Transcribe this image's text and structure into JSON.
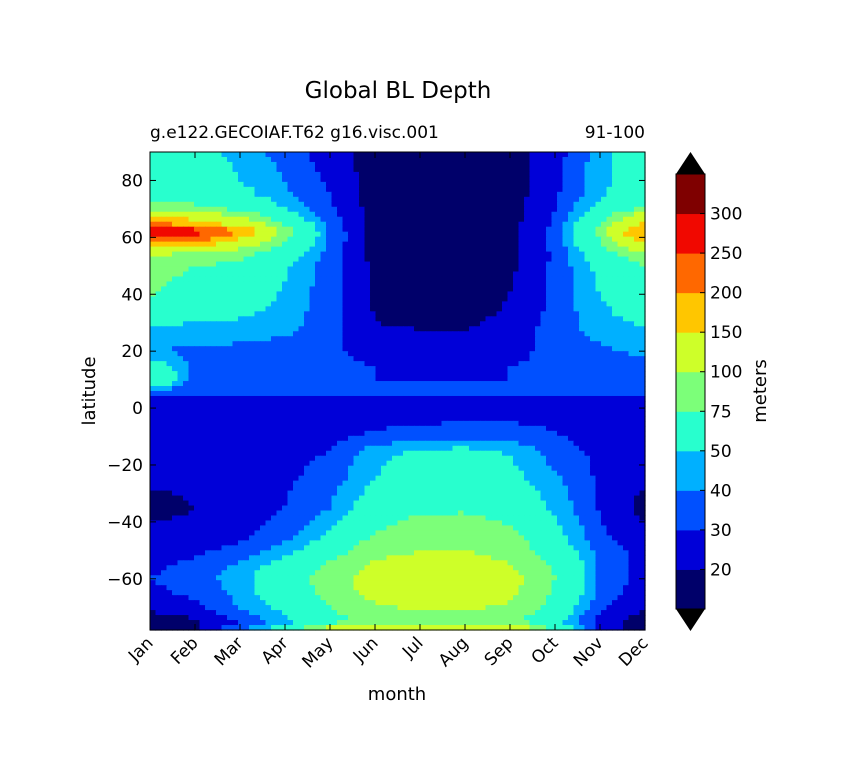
{
  "chart_data": {
    "type": "contourf",
    "title": "Global BL Depth",
    "subtitle_left": "g.e122.GECOIAF.T62 g16.visc.001",
    "subtitle_right": "91-100",
    "xlabel": "month",
    "ylabel": "latitude",
    "colorbar_label": "meters",
    "x_categories": [
      "Jan",
      "Feb",
      "Mar",
      "Apr",
      "May",
      "Jun",
      "Jul",
      "Aug",
      "Sep",
      "Oct",
      "Nov",
      "Dec"
    ],
    "ylim": [
      -78,
      90
    ],
    "yticks": [
      -60,
      -40,
      -20,
      0,
      20,
      40,
      60,
      80
    ],
    "levels": [
      20,
      30,
      40,
      50,
      75,
      100,
      150,
      200,
      250,
      300
    ],
    "level_labels": [
      "20",
      "30",
      "40",
      "50",
      "75",
      "100",
      "150",
      "200",
      "250",
      "300"
    ],
    "level_colors": [
      "#00006a",
      "#0000d8",
      "#0050ff",
      "#00b0ff",
      "#28ffce",
      "#7cff79",
      "#ceff29",
      "#ffc600",
      "#ff6800",
      "#f10800",
      "#7f0000"
    ],
    "extend_colors": {
      "low": "#000000",
      "high": "#000000"
    },
    "latitudes": [
      90,
      85,
      80,
      75,
      70,
      65,
      62,
      60,
      55,
      50,
      45,
      40,
      35,
      30,
      25,
      20,
      15,
      10,
      5,
      0,
      -5,
      -10,
      -15,
      -20,
      -25,
      -30,
      -35,
      -40,
      -45,
      -50,
      -55,
      -60,
      -65,
      -70,
      -75,
      -78
    ],
    "values": [
      [
        60,
        55,
        45,
        35,
        25,
        15,
        12,
        12,
        15,
        25,
        45,
        60
      ],
      [
        65,
        60,
        48,
        38,
        26,
        15,
        12,
        12,
        15,
        26,
        46,
        62
      ],
      [
        65,
        60,
        50,
        40,
        28,
        15,
        12,
        12,
        15,
        27,
        46,
        62
      ],
      [
        70,
        65,
        55,
        42,
        30,
        15,
        12,
        12,
        15,
        28,
        48,
        65
      ],
      [
        85,
        80,
        70,
        50,
        32,
        15,
        12,
        12,
        15,
        30,
        55,
        80
      ],
      [
        200,
        170,
        120,
        70,
        35,
        15,
        12,
        12,
        16,
        32,
        70,
        160
      ],
      [
        310,
        280,
        200,
        90,
        38,
        15,
        12,
        12,
        16,
        33,
        80,
        220
      ],
      [
        270,
        240,
        160,
        80,
        38,
        15,
        12,
        12,
        16,
        33,
        78,
        190
      ],
      [
        110,
        100,
        85,
        60,
        36,
        16,
        12,
        12,
        17,
        32,
        62,
        100
      ],
      [
        80,
        75,
        70,
        52,
        35,
        17,
        13,
        13,
        18,
        32,
        55,
        75
      ],
      [
        78,
        72,
        65,
        50,
        34,
        18,
        14,
        14,
        19,
        32,
        52,
        70
      ],
      [
        76,
        70,
        62,
        48,
        34,
        19,
        15,
        15,
        20,
        32,
        50,
        65
      ],
      [
        60,
        58,
        55,
        46,
        34,
        19,
        16,
        16,
        21,
        33,
        48,
        58
      ],
      [
        52,
        50,
        48,
        44,
        34,
        20,
        18,
        18,
        23,
        34,
        46,
        52
      ],
      [
        45,
        44,
        43,
        40,
        33,
        24,
        22,
        22,
        26,
        34,
        42,
        46
      ],
      [
        40,
        38,
        36,
        34,
        31,
        28,
        26,
        26,
        28,
        32,
        38,
        42
      ],
      [
        60,
        36,
        34,
        33,
        31,
        30,
        29,
        29,
        30,
        31,
        34,
        38
      ],
      [
        78,
        34,
        33,
        32,
        31,
        30,
        30,
        30,
        30,
        30,
        33,
        36
      ],
      [
        32,
        31,
        31,
        30,
        30,
        30,
        30,
        30,
        30,
        30,
        31,
        32
      ],
      [
        25,
        26,
        26,
        27,
        27,
        28,
        29,
        29,
        29,
        28,
        26,
        25
      ],
      [
        24,
        24,
        25,
        25,
        26,
        27,
        29,
        30,
        30,
        28,
        25,
        24
      ],
      [
        24,
        24,
        24,
        25,
        27,
        32,
        36,
        38,
        36,
        31,
        26,
        24
      ],
      [
        24,
        24,
        24,
        26,
        30,
        45,
        52,
        53,
        48,
        35,
        27,
        24
      ],
      [
        24,
        24,
        25,
        27,
        33,
        48,
        58,
        60,
        52,
        38,
        28,
        24
      ],
      [
        23,
        23,
        25,
        28,
        35,
        50,
        62,
        64,
        55,
        42,
        28,
        23
      ],
      [
        18,
        22,
        25,
        29,
        38,
        55,
        65,
        68,
        60,
        45,
        29,
        18
      ],
      [
        15,
        20,
        25,
        30,
        40,
        60,
        68,
        70,
        62,
        47,
        29,
        16
      ],
      [
        20,
        22,
        26,
        33,
        45,
        68,
        82,
        84,
        72,
        52,
        30,
        20
      ],
      [
        24,
        25,
        28,
        36,
        52,
        78,
        92,
        95,
        82,
        56,
        32,
        24
      ],
      [
        26,
        28,
        33,
        45,
        62,
        88,
        98,
        99,
        88,
        62,
        35,
        26
      ],
      [
        28,
        32,
        42,
        56,
        78,
        105,
        115,
        115,
        100,
        72,
        38,
        26
      ],
      [
        30,
        34,
        46,
        62,
        85,
        115,
        130,
        130,
        110,
        75,
        38,
        26
      ],
      [
        28,
        32,
        44,
        60,
        82,
        112,
        125,
        125,
        108,
        72,
        36,
        24
      ],
      [
        22,
        28,
        40,
        55,
        75,
        95,
        105,
        105,
        95,
        65,
        32,
        20
      ],
      [
        15,
        18,
        30,
        45,
        65,
        80,
        85,
        85,
        80,
        55,
        25,
        15
      ],
      [
        14,
        18,
        40,
        60,
        120,
        160,
        170,
        170,
        140,
        70,
        25,
        14
      ]
    ]
  }
}
